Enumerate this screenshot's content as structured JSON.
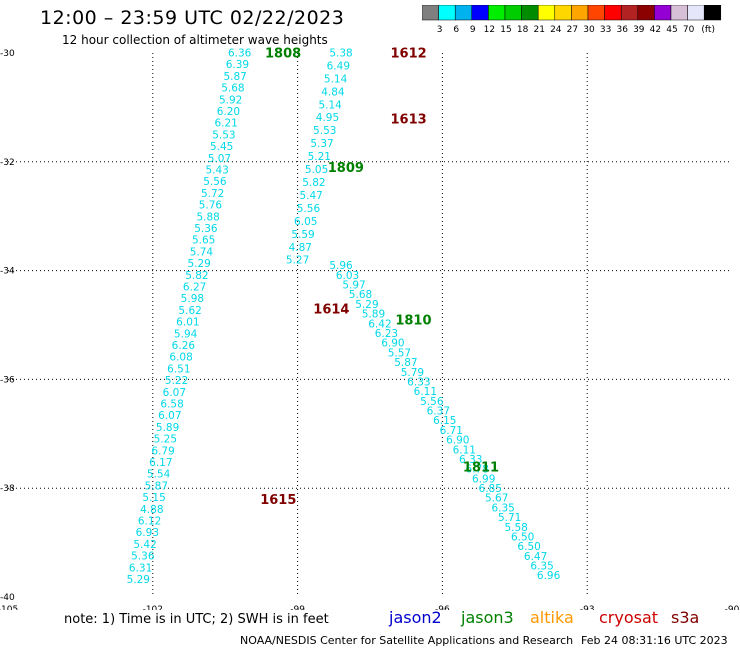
{
  "title": "12:00 – 23:59 UTC 02/22/2023",
  "subtitle": "12 hour collection of altimeter wave heights",
  "colorbar": {
    "unit": "(ft)",
    "ticks": [
      "3",
      "6",
      "9",
      "12",
      "15",
      "18",
      "21",
      "24",
      "27",
      "30",
      "33",
      "36",
      "39",
      "42",
      "45",
      "70"
    ],
    "colors": [
      "#7f7f7f",
      "#00ffff",
      "#00b2ee",
      "#0000ff",
      "#00ee00",
      "#00cd00",
      "#008b00",
      "#ffff00",
      "#ffd700",
      "#ffa500",
      "#ff4500",
      "#ff0000",
      "#b22222",
      "#8b0000",
      "#9400d3",
      "#d8bfd8",
      "#e6e6fa",
      "#000000"
    ]
  },
  "axes": {
    "x_labels": [
      "-105",
      "-102",
      "-99",
      "-96",
      "-93",
      "-90"
    ],
    "y_labels": [
      "-30",
      "-32",
      "-34",
      "-36",
      "-38",
      "-40"
    ]
  },
  "tracks": [
    {
      "label": "1808",
      "color": "#008000",
      "label_lat": -29.99,
      "label_lon": -99.3,
      "start": [
        -29.99,
        -100.2
      ],
      "end": [
        -39.67,
        -102.3
      ],
      "values": [
        "6.36",
        "6.39",
        "5.87",
        "5.68",
        "5.92",
        "6.20",
        "6.21",
        "5.53",
        "5.45",
        "5.07",
        "5.43",
        "5.56",
        "5.72",
        "5.76",
        "5.88",
        "5.36",
        "5.65",
        "5.74",
        "5.29",
        "5.82",
        "6.27",
        "5.98",
        "5.62",
        "6.01",
        "5.94",
        "6.26",
        "6.08",
        "6.51",
        "5.22",
        "6.07",
        "6.58",
        "6.07",
        "5.89",
        "5.25",
        "6.79",
        "6.17",
        "5.54",
        "5.87",
        "5.15",
        "4.88",
        "6.12",
        "6.93",
        "5.42",
        "5.36",
        "6.31",
        "5.29"
      ]
    },
    {
      "label": "1612",
      "color": "#800000",
      "label_lat": -29.99,
      "label_lon": -96.7,
      "start": [
        -29.99,
        -98.1
      ],
      "end": [
        -33.8,
        -99.0
      ],
      "values": [
        "5.38",
        "6.49",
        "5.14",
        "4.84",
        "5.14",
        "4.95",
        "5.53",
        "5.37",
        "5.21",
        "5.05",
        "5.82",
        "5.47",
        "5.56",
        "6.05",
        "5.59",
        "4.87",
        "5.27"
      ]
    },
    {
      "label": "1613",
      "color": "#800000",
      "label_lat": -31.2,
      "label_lon": -96.7
    },
    {
      "label": "1809",
      "color": "#008000",
      "label_lat": -32.1,
      "label_lon": -98.0
    },
    {
      "label": "1614",
      "color": "#800000",
      "label_lat": -34.7,
      "label_lon": -98.3,
      "start": [
        -33.9,
        -98.1
      ],
      "end": [
        -39.6,
        -93.8
      ],
      "values": [
        "5.96",
        "6.03",
        "5.97",
        "5.68",
        "5.29",
        "5.89",
        "6.42",
        "6.23",
        "6.90",
        "5.57",
        "5.87",
        "5.79",
        "6.33",
        "6.11",
        "5.56",
        "6.37",
        "6.15",
        "6.71",
        "6.90",
        "6.11",
        "6.33",
        "6.78",
        "6.99",
        "6.85",
        "5.67",
        "6.35",
        "5.71",
        "5.58",
        "6.50",
        "6.50",
        "6.47",
        "6.35",
        "6.96"
      ]
    },
    {
      "label": "1810",
      "color": "#008000",
      "label_lat": -34.9,
      "label_lon": -96.6
    },
    {
      "label": "1811",
      "color": "#008000",
      "label_lat": -37.6,
      "label_lon": -95.2
    },
    {
      "label": "1615",
      "color": "#800000",
      "label_lat": -38.2,
      "label_lon": -99.4
    }
  ],
  "note": "note:  1) Time is in UTC;  2) SWH is in feet",
  "satellites": [
    {
      "name": "jason2",
      "color": "#0000cc"
    },
    {
      "name": "jason3",
      "color": "#008000"
    },
    {
      "name": "altika",
      "color": "#ff9900"
    },
    {
      "name": "cryosat",
      "color": "#cc0000"
    },
    {
      "name": "s3a",
      "color": "#800000"
    }
  ],
  "credit": "NOAA/NESDIS Center for Satellite Applications and Research",
  "timestamp": "Feb 24 08:31:16 UTC 2023"
}
